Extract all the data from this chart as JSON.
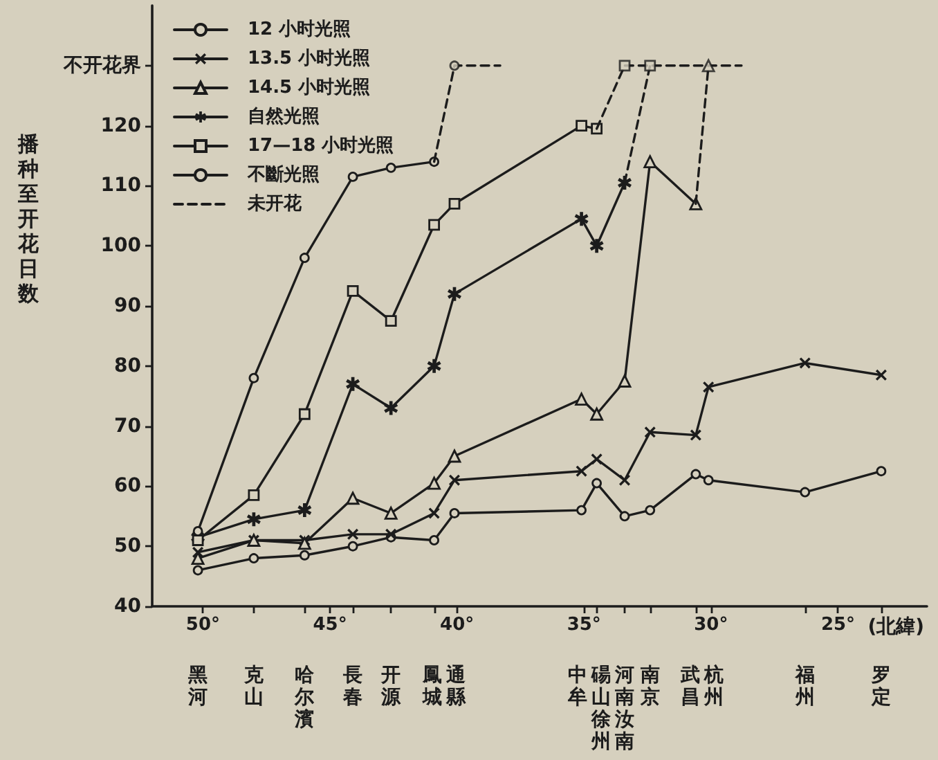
{
  "chart_data": {
    "type": "line",
    "ylabel": "播种至开花日数",
    "xlabel": "(北緯)",
    "x": [
      50.2,
      48,
      46,
      44.1,
      42.6,
      40.9,
      40.1,
      35.1,
      34.5,
      33.4,
      32.4,
      30.6,
      30.1,
      26.3,
      23.3
    ],
    "xlim": [
      52,
      21.5
    ],
    "xticks": [
      {
        "value": 50,
        "label": "50°"
      },
      {
        "value": 48,
        "label": null
      },
      {
        "value": 46,
        "label": null
      },
      {
        "value": 45,
        "label": "45°"
      },
      {
        "value": 44.1,
        "label": null
      },
      {
        "value": 42.6,
        "label": null
      },
      {
        "value": 40.9,
        "label": null
      },
      {
        "value": 40,
        "label": "40°"
      },
      {
        "value": 35,
        "label": "35°"
      },
      {
        "value": 34.5,
        "label": null
      },
      {
        "value": 33.4,
        "label": null
      },
      {
        "value": 32.4,
        "label": null
      },
      {
        "value": 30.6,
        "label": null
      },
      {
        "value": 30,
        "label": "30°"
      },
      {
        "value": 26.3,
        "label": null
      },
      {
        "value": 25,
        "label": "25°"
      },
      {
        "value": 23.3,
        "label": null
      }
    ],
    "ylim": [
      40,
      140
    ],
    "yticks": [
      40,
      50,
      60,
      70,
      80,
      90,
      100,
      110,
      120,
      {
        "value": 130,
        "label": "不开花界"
      }
    ],
    "legend": "top left",
    "annotations": [
      "黑河",
      "克山",
      "哈尔濱",
      "長春",
      "开源",
      "鳳城",
      "通縣",
      "中牟",
      "碭山徐州",
      "河南汝南",
      "南京",
      "武昌",
      "杭州",
      "福州",
      "罗定"
    ],
    "series": [
      {
        "name": "12 小时光照",
        "color": "#1c1c1c",
        "marker": "circle",
        "line_style": "solid",
        "values": [
          46,
          48,
          48.5,
          50,
          51.5,
          51,
          55.5,
          56,
          60.5,
          55,
          56,
          62,
          61,
          59,
          62.5
        ]
      },
      {
        "name": "13.5 小时光照",
        "color": "#1c1c1c",
        "marker": "cross",
        "line_style": "solid",
        "values": [
          49,
          51,
          51,
          52,
          52,
          55.5,
          61,
          62.5,
          64.5,
          61,
          69,
          68.5,
          76.5,
          80.5,
          78.5
        ]
      },
      {
        "name": "14.5 小时光照",
        "color": "#1c1c1c",
        "marker": "triangle",
        "line_style": "solid",
        "values": [
          48,
          51,
          50.5,
          58,
          55.5,
          60.5,
          65,
          74.5,
          72,
          77.5,
          114,
          107,
          null,
          null,
          null
        ]
      },
      {
        "name": "自然光照",
        "color": "#1c1c1c",
        "marker": "star",
        "line_style": "solid",
        "values": [
          51.5,
          54.5,
          56,
          77,
          73,
          80,
          92,
          104.5,
          100,
          110.5,
          null,
          null,
          null,
          null,
          null
        ]
      },
      {
        "name": "17—18 小时光照",
        "color": "#1c1c1c",
        "marker": "square",
        "line_style": "solid",
        "values": [
          51,
          58.5,
          72,
          92.5,
          87.5,
          103.5,
          107,
          120,
          119.5,
          null,
          null,
          null,
          null,
          null,
          null
        ]
      },
      {
        "name": "不斷光照",
        "color": "#1c1c1c",
        "marker": "circle",
        "line_style": "solid",
        "values": [
          52.5,
          78,
          98,
          111.5,
          113,
          114,
          null,
          null,
          null,
          null,
          null,
          null,
          null,
          null,
          null
        ]
      },
      {
        "name": "未开花",
        "color": "#1c1c1c",
        "marker": "none",
        "line_style": "dashed",
        "x": [
          40.9,
          40.1,
          38.3
        ],
        "values": [
          114,
          130,
          130
        ]
      },
      {
        "color": "#1c1c1c",
        "marker": "none",
        "line_style": "dashed",
        "x": [
          34.5,
          33.4,
          32.4,
          30.1,
          28.8
        ],
        "values": [
          119.5,
          130,
          130,
          130,
          130
        ]
      },
      {
        "color": "#1c1c1c",
        "marker": "none",
        "line_style": "dashed",
        "x": [
          33.4,
          32.4
        ],
        "values": [
          110.5,
          130
        ]
      },
      {
        "color": "#1c1c1c",
        "marker": "none",
        "line_style": "dashed",
        "x": [
          30.6,
          30.1
        ],
        "values": [
          107,
          130
        ]
      },
      {
        "type": "scatter",
        "color": "#1c1c1c",
        "marker": "circle",
        "x": [
          40.1
        ],
        "values": [
          130
        ]
      },
      {
        "type": "scatter",
        "color": "#1c1c1c",
        "marker": "square",
        "x": [
          33.4,
          32.4
        ],
        "values": [
          130,
          130
        ]
      },
      {
        "type": "scatter",
        "color": "#1c1c1c",
        "marker": "triangle",
        "x": [
          30.1
        ],
        "values": [
          130
        ]
      }
    ]
  }
}
